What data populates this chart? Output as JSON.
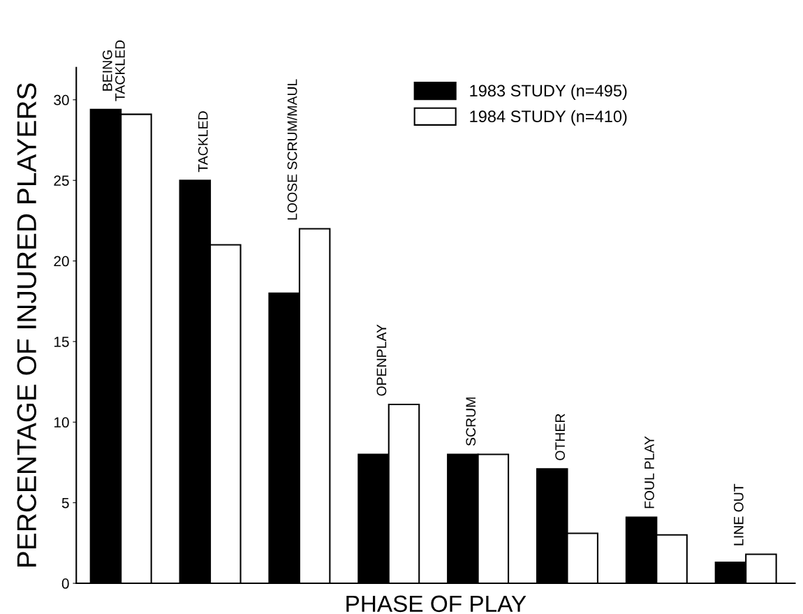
{
  "chart_data": {
    "type": "bar",
    "ylabel": "PERCENTAGE OF INJURED PLAYERS",
    "xlabel": "PHASE OF PLAY",
    "categories": [
      "BEING\nTACKLED",
      "TACKLED",
      "LOOSE SCRUM/MAUL",
      "OPENPLAY",
      "SCRUM",
      "OTHER",
      "FOUL PLAY",
      "LINE OUT"
    ],
    "series": [
      {
        "name": "1983 STUDY (n=495)",
        "color": "#000000",
        "values": [
          29.4,
          25,
          18,
          8,
          8,
          7.1,
          4.1,
          1.3
        ]
      },
      {
        "name": "1984 STUDY (n=410)",
        "color": "#ffffff",
        "values": [
          29.1,
          21,
          22,
          11.1,
          8,
          3.1,
          3,
          1.8
        ]
      }
    ],
    "ylim": [
      0,
      32
    ],
    "yticks": [
      0,
      5,
      10,
      15,
      20,
      25,
      30
    ],
    "grid": false,
    "legend": "top right"
  }
}
